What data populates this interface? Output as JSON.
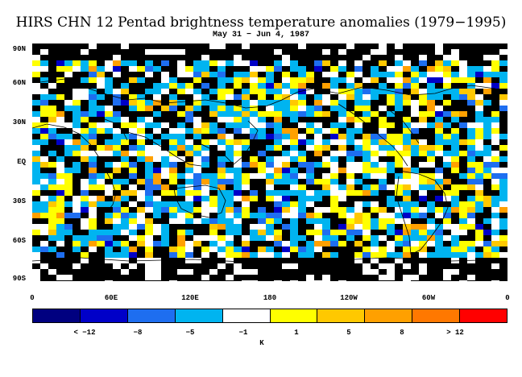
{
  "title": "HIRS CHN 12 Pentad brightness temperature anomalies (1979−1995)",
  "subtitle": "May 31 − Jun 4, 1987",
  "lat_labels": [
    "90N",
    "60N",
    "30N",
    "EQ",
    "30S",
    "60S",
    "90S"
  ],
  "lon_labels": [
    "0",
    "60E",
    "120E",
    "180",
    "120W",
    "60W",
    "0"
  ],
  "colorbar": {
    "colors": [
      "#000080",
      "#0000c8",
      "#1e6ef0",
      "#00b4f0",
      "#ffffff",
      "#ffff00",
      "#ffc800",
      "#ffa000",
      "#ff7800",
      "#ff0000"
    ],
    "tick_labels": [
      "< −12",
      "−8",
      "−5",
      "−1",
      "1",
      "5",
      "8",
      "> 12"
    ],
    "unit": "K"
  },
  "map": {
    "missing_color": "#000000",
    "coastline_color": "#000000"
  }
}
